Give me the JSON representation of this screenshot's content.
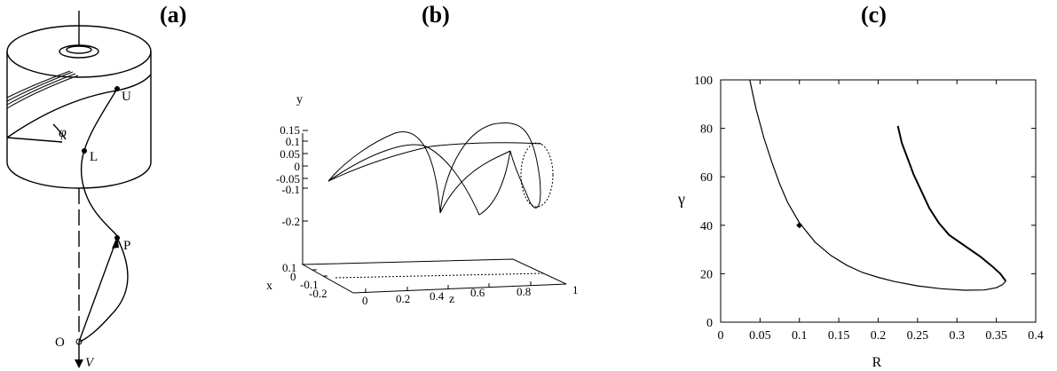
{
  "panels": {
    "a": {
      "label": "(a)",
      "points": {
        "U": "U",
        "L": "L",
        "P": "P",
        "O": "O"
      },
      "angle": "φ",
      "velocity": "V"
    },
    "b": {
      "label": "(b)",
      "axis_y": "y",
      "axis_x": "x",
      "axis_z": "z",
      "y_ticks": [
        "0.15",
        "0.1",
        "0.05",
        "0",
        "-0.05",
        "-0.1",
        "-0.2"
      ],
      "x_ticks": [
        "0.1",
        "0",
        "-0.1",
        "-0.2"
      ],
      "z_ticks": [
        "0",
        "0.2",
        "0.4",
        "0.6",
        "0.8",
        "1"
      ]
    },
    "c": {
      "label": "(c)"
    }
  },
  "chart_data": {
    "type": "line",
    "xlabel": "R",
    "ylabel": "γ",
    "xlim": [
      0,
      0.4
    ],
    "ylim": [
      0,
      100
    ],
    "x_ticks": [
      "0",
      "0.05",
      "0.1",
      "0.15",
      "0.2",
      "0.25",
      "0.3",
      "0.35",
      "0.4"
    ],
    "y_ticks": [
      "0",
      "20",
      "40",
      "60",
      "80",
      "100"
    ],
    "series": [
      {
        "points": [
          [
            0.037,
            100
          ],
          [
            0.045,
            88
          ],
          [
            0.055,
            76
          ],
          [
            0.065,
            66
          ],
          [
            0.075,
            57
          ],
          [
            0.085,
            49.5
          ],
          [
            0.1,
            41
          ],
          [
            0.12,
            33
          ],
          [
            0.14,
            27.5
          ],
          [
            0.16,
            23.5
          ],
          [
            0.18,
            20.5
          ],
          [
            0.2,
            18.5
          ],
          [
            0.22,
            16.8
          ],
          [
            0.25,
            15
          ],
          [
            0.28,
            13.8
          ],
          [
            0.31,
            13.2
          ],
          [
            0.335,
            13.3
          ],
          [
            0.35,
            14.2
          ],
          [
            0.358,
            15.5
          ],
          [
            0.362,
            17
          ]
        ]
      },
      {
        "points": [
          [
            0.362,
            17
          ],
          [
            0.355,
            20
          ],
          [
            0.345,
            23
          ],
          [
            0.33,
            27
          ],
          [
            0.31,
            31.5
          ],
          [
            0.29,
            36
          ],
          [
            0.277,
            41
          ],
          [
            0.265,
            47
          ],
          [
            0.255,
            54
          ],
          [
            0.245,
            61
          ],
          [
            0.237,
            68
          ],
          [
            0.23,
            74
          ],
          [
            0.225,
            81
          ]
        ]
      }
    ],
    "markers": [
      {
        "x": 0.1,
        "y": 40
      }
    ]
  }
}
